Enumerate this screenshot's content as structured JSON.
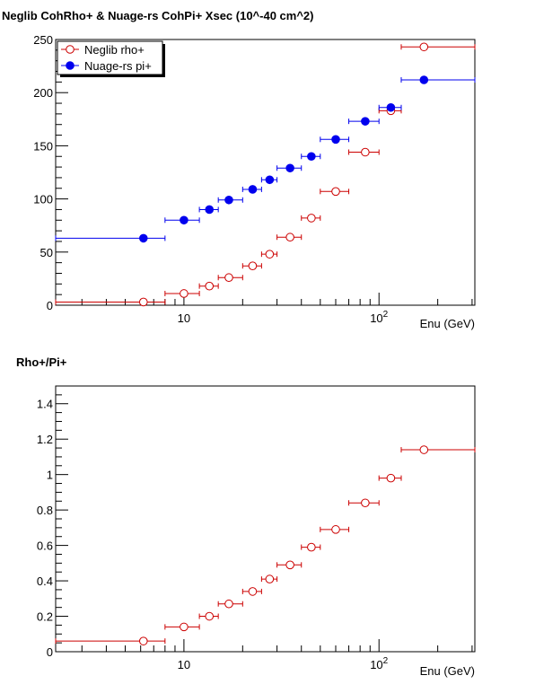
{
  "chart_data": [
    {
      "type": "scatter",
      "title": "Neglib CohRho+ & Nuage-rs CohPi+ Xsec (10^-40 cm^2)",
      "xlabel": "Enu (GeV)",
      "ylabel": "",
      "xscale": "log",
      "xlim": [
        2.2,
        310
      ],
      "ylim": [
        0,
        250
      ],
      "y_ticks": [
        "0",
        "50",
        "100",
        "150",
        "200",
        "250"
      ],
      "x_tick_labels": [
        {
          "value": 10,
          "label": "10"
        },
        {
          "value": 100,
          "label": "10",
          "sup": "2"
        }
      ],
      "legend": {
        "placement": "top-left"
      },
      "grid": false,
      "series": [
        {
          "name": "Neglib rho+",
          "marker": "open-circle",
          "color": "#cc0000",
          "points": [
            {
              "x": 6.2,
              "y": 3,
              "xlo": 2.2,
              "xhi": 8
            },
            {
              "x": 10,
              "y": 11,
              "xlo": 8,
              "xhi": 12
            },
            {
              "x": 13.5,
              "y": 18,
              "xlo": 12,
              "xhi": 15
            },
            {
              "x": 17,
              "y": 26,
              "xlo": 15,
              "xhi": 20
            },
            {
              "x": 22.5,
              "y": 37,
              "xlo": 20,
              "xhi": 25
            },
            {
              "x": 27.5,
              "y": 48,
              "xlo": 25,
              "xhi": 30
            },
            {
              "x": 35,
              "y": 64,
              "xlo": 30,
              "xhi": 40
            },
            {
              "x": 45,
              "y": 82,
              "xlo": 40,
              "xhi": 50
            },
            {
              "x": 60,
              "y": 107,
              "xlo": 50,
              "xhi": 70
            },
            {
              "x": 85,
              "y": 144,
              "xlo": 70,
              "xhi": 100
            },
            {
              "x": 115,
              "y": 183,
              "xlo": 100,
              "xhi": 130
            },
            {
              "x": 170,
              "y": 243,
              "xlo": 130,
              "xhi": 310
            }
          ]
        },
        {
          "name": "Nuage-rs pi+",
          "marker": "filled-circle",
          "color": "#0000ee",
          "points": [
            {
              "x": 6.2,
              "y": 63,
              "xlo": 2.2,
              "xhi": 8
            },
            {
              "x": 10,
              "y": 80,
              "xlo": 8,
              "xhi": 12
            },
            {
              "x": 13.5,
              "y": 90,
              "xlo": 12,
              "xhi": 15
            },
            {
              "x": 17,
              "y": 99,
              "xlo": 15,
              "xhi": 20
            },
            {
              "x": 22.5,
              "y": 109,
              "xlo": 20,
              "xhi": 25
            },
            {
              "x": 27.5,
              "y": 118,
              "xlo": 25,
              "xhi": 30
            },
            {
              "x": 35,
              "y": 129,
              "xlo": 30,
              "xhi": 40
            },
            {
              "x": 45,
              "y": 140,
              "xlo": 40,
              "xhi": 50
            },
            {
              "x": 60,
              "y": 156,
              "xlo": 50,
              "xhi": 70
            },
            {
              "x": 85,
              "y": 173,
              "xlo": 70,
              "xhi": 100
            },
            {
              "x": 115,
              "y": 186,
              "xlo": 100,
              "xhi": 130
            },
            {
              "x": 170,
              "y": 212,
              "xlo": 130,
              "xhi": 310
            }
          ]
        }
      ]
    },
    {
      "type": "scatter",
      "title": "Rho+/Pi+",
      "xlabel": "Enu (GeV)",
      "ylabel": "",
      "xscale": "log",
      "xlim": [
        2.2,
        310
      ],
      "ylim": [
        0,
        1.5
      ],
      "y_ticks": [
        "0",
        "0.2",
        "0.4",
        "0.6",
        "0.8",
        "1",
        "1.2",
        "1.4"
      ],
      "x_tick_labels": [
        {
          "value": 10,
          "label": "10"
        },
        {
          "value": 100,
          "label": "10",
          "sup": "2"
        }
      ],
      "grid": false,
      "series": [
        {
          "marker": "open-circle",
          "color": "#cc0000",
          "points": [
            {
              "x": 6.2,
              "y": 0.06,
              "xlo": 2.2,
              "xhi": 8
            },
            {
              "x": 10,
              "y": 0.14,
              "xlo": 8,
              "xhi": 12
            },
            {
              "x": 13.5,
              "y": 0.2,
              "xlo": 12,
              "xhi": 15
            },
            {
              "x": 17,
              "y": 0.27,
              "xlo": 15,
              "xhi": 20
            },
            {
              "x": 22.5,
              "y": 0.34,
              "xlo": 20,
              "xhi": 25
            },
            {
              "x": 27.5,
              "y": 0.41,
              "xlo": 25,
              "xhi": 30
            },
            {
              "x": 35,
              "y": 0.49,
              "xlo": 30,
              "xhi": 40
            },
            {
              "x": 45,
              "y": 0.59,
              "xlo": 40,
              "xhi": 50
            },
            {
              "x": 60,
              "y": 0.69,
              "xlo": 50,
              "xhi": 70
            },
            {
              "x": 85,
              "y": 0.84,
              "xlo": 70,
              "xhi": 100
            },
            {
              "x": 115,
              "y": 0.98,
              "xlo": 100,
              "xhi": 130
            },
            {
              "x": 170,
              "y": 1.14,
              "xlo": 130,
              "xhi": 310
            }
          ]
        }
      ]
    }
  ]
}
